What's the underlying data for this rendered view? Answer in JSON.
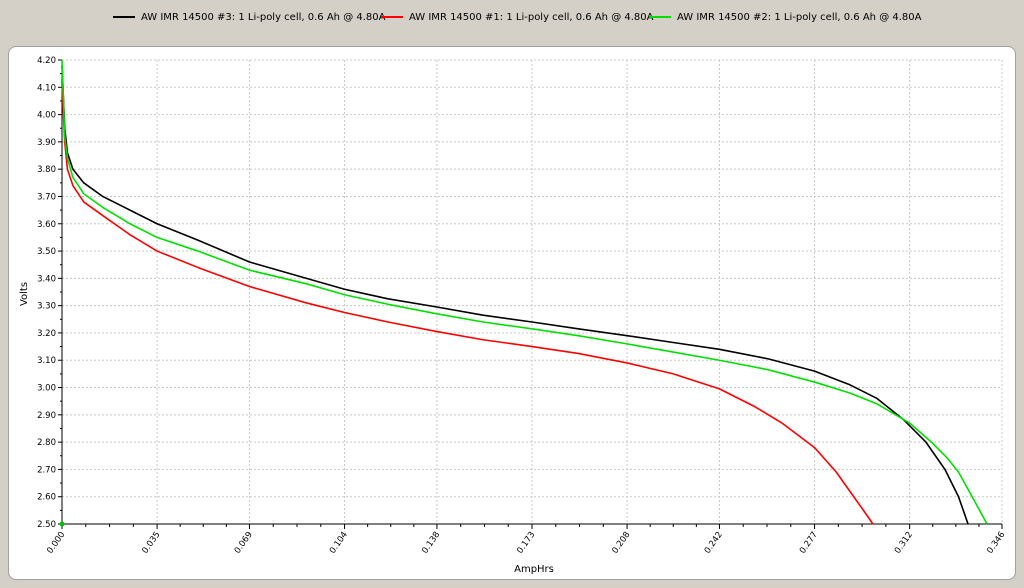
{
  "legend": [
    {
      "label": "AW IMR 14500 #3: 1 Li-poly cell, 0.6 Ah @ 4.80A",
      "color": "#000000"
    },
    {
      "label": "AW IMR 14500 #1: 1 Li-poly cell, 0.6 Ah @ 4.80A",
      "color": "#ff0000"
    },
    {
      "label": "AW IMR 14500 #2: 1 Li-poly cell, 0.6 Ah @ 4.80A",
      "color": "#00e000"
    }
  ],
  "chart_data": {
    "type": "line",
    "xlabel": "AmpHrs",
    "ylabel": "Volts",
    "xlim": [
      0,
      0.346
    ],
    "ylim": [
      2.5,
      4.2
    ],
    "grid": true,
    "legend_position": "top",
    "x_ticks": [
      "0.000",
      "0.035",
      "0.069",
      "0.104",
      "0.138",
      "0.173",
      "0.208",
      "0.242",
      "0.277",
      "0.312",
      "0.346"
    ],
    "y_ticks": [
      "2.50",
      "2.60",
      "2.70",
      "2.80",
      "2.90",
      "3.00",
      "3.10",
      "3.20",
      "3.30",
      "3.40",
      "3.50",
      "3.60",
      "3.70",
      "3.80",
      "3.90",
      "4.00",
      "4.10",
      "4.20"
    ],
    "series": [
      {
        "name": "AW IMR 14500 #3: 1 Li-poly cell, 0.6 Ah @ 4.80A",
        "color": "#000000",
        "points": [
          [
            0,
            4.18
          ],
          [
            0.001,
            3.95
          ],
          [
            0.002,
            3.86
          ],
          [
            0.004,
            3.8
          ],
          [
            0.008,
            3.75
          ],
          [
            0.015,
            3.7
          ],
          [
            0.025,
            3.65
          ],
          [
            0.035,
            3.6
          ],
          [
            0.05,
            3.54
          ],
          [
            0.069,
            3.46
          ],
          [
            0.09,
            3.4
          ],
          [
            0.104,
            3.36
          ],
          [
            0.12,
            3.325
          ],
          [
            0.138,
            3.295
          ],
          [
            0.155,
            3.265
          ],
          [
            0.173,
            3.24
          ],
          [
            0.19,
            3.215
          ],
          [
            0.208,
            3.19
          ],
          [
            0.225,
            3.165
          ],
          [
            0.242,
            3.14
          ],
          [
            0.26,
            3.105
          ],
          [
            0.277,
            3.06
          ],
          [
            0.29,
            3.01
          ],
          [
            0.3,
            2.96
          ],
          [
            0.31,
            2.88
          ],
          [
            0.318,
            2.8
          ],
          [
            0.325,
            2.7
          ],
          [
            0.33,
            2.6
          ],
          [
            0.3335,
            2.5
          ]
        ]
      },
      {
        "name": "AW IMR 14500 #1: 1 Li-poly cell, 0.6 Ah @ 4.80A",
        "color": "#ff0000",
        "points": [
          [
            0,
            4.12
          ],
          [
            0.001,
            3.9
          ],
          [
            0.002,
            3.8
          ],
          [
            0.004,
            3.74
          ],
          [
            0.008,
            3.68
          ],
          [
            0.015,
            3.63
          ],
          [
            0.025,
            3.56
          ],
          [
            0.035,
            3.5
          ],
          [
            0.05,
            3.44
          ],
          [
            0.069,
            3.37
          ],
          [
            0.09,
            3.31
          ],
          [
            0.104,
            3.275
          ],
          [
            0.12,
            3.24
          ],
          [
            0.138,
            3.205
          ],
          [
            0.155,
            3.175
          ],
          [
            0.173,
            3.15
          ],
          [
            0.19,
            3.125
          ],
          [
            0.208,
            3.09
          ],
          [
            0.225,
            3.05
          ],
          [
            0.242,
            2.995
          ],
          [
            0.255,
            2.93
          ],
          [
            0.265,
            2.87
          ],
          [
            0.277,
            2.78
          ],
          [
            0.285,
            2.69
          ],
          [
            0.29,
            2.62
          ],
          [
            0.295,
            2.55
          ],
          [
            0.2985,
            2.5
          ]
        ]
      },
      {
        "name": "AW IMR 14500 #2: 1 Li-poly cell, 0.6 Ah @ 4.80A",
        "color": "#00e000",
        "points": [
          [
            0,
            4.2
          ],
          [
            0.001,
            3.92
          ],
          [
            0.002,
            3.84
          ],
          [
            0.004,
            3.77
          ],
          [
            0.008,
            3.71
          ],
          [
            0.015,
            3.66
          ],
          [
            0.025,
            3.6
          ],
          [
            0.035,
            3.55
          ],
          [
            0.05,
            3.5
          ],
          [
            0.069,
            3.43
          ],
          [
            0.09,
            3.38
          ],
          [
            0.104,
            3.34
          ],
          [
            0.12,
            3.305
          ],
          [
            0.138,
            3.27
          ],
          [
            0.155,
            3.24
          ],
          [
            0.173,
            3.215
          ],
          [
            0.19,
            3.19
          ],
          [
            0.208,
            3.16
          ],
          [
            0.225,
            3.13
          ],
          [
            0.242,
            3.1
          ],
          [
            0.26,
            3.065
          ],
          [
            0.277,
            3.02
          ],
          [
            0.29,
            2.98
          ],
          [
            0.3,
            2.94
          ],
          [
            0.312,
            2.87
          ],
          [
            0.32,
            2.8
          ],
          [
            0.326,
            2.74
          ],
          [
            0.33,
            2.69
          ],
          [
            0.335,
            2.6
          ],
          [
            0.3405,
            2.5
          ]
        ]
      }
    ]
  }
}
